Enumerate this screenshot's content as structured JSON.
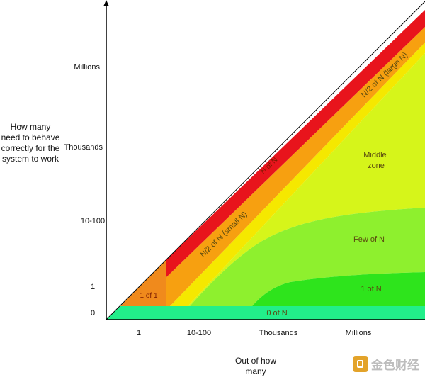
{
  "y_axis": {
    "title": "How many need to behave correctly for the system to work",
    "ticks": [
      "Millions",
      "Thousands",
      "10-100",
      "1",
      "0"
    ]
  },
  "x_axis": {
    "title": "Out of how many",
    "ticks": [
      "1",
      "10-100",
      "Thousands",
      "Millions"
    ]
  },
  "zones": {
    "n_of_n": "N of N",
    "n2_large": "N/2 of N (large N)",
    "n2_small": "N/2 of N (small N)",
    "one_of_one": "1 of 1",
    "middle": "Middle zone",
    "few": "Few of N",
    "one_of_n": "1 of N",
    "zero_of_n": "0 of N"
  },
  "colors": {
    "n_of_n": "#e8141c",
    "n2": "#f7a010",
    "n2_large": "#f5e800",
    "one_of_one": "#f08a1c",
    "middle": "#d6f51a",
    "few": "#8ef02e",
    "one_of_n": "#2ee41c",
    "zero_of_n": "#22ef8a"
  },
  "watermark": "金色财经"
}
